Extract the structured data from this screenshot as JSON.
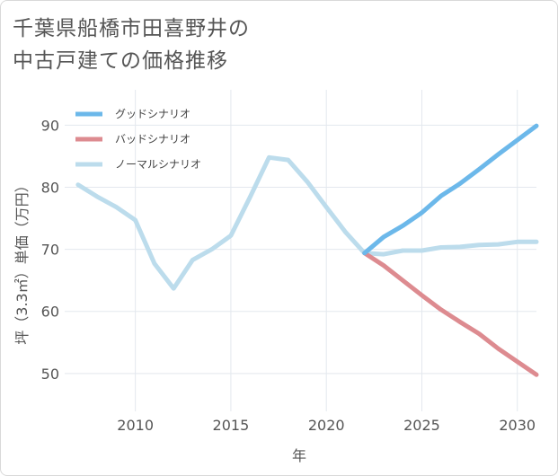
{
  "title_line1": "千葉県船橋市田喜野井の",
  "title_line2": "中古戸建ての価格推移",
  "chart_data": {
    "type": "line",
    "xlabel": "年",
    "ylabel": "坪（3.3㎡）単価（万円）",
    "xlim": [
      2006.3,
      2031
    ],
    "ylim": [
      43.9,
      95.7
    ],
    "xticks": [
      2010,
      2015,
      2020,
      2025,
      2030
    ],
    "yticks": [
      50,
      60,
      70,
      80,
      90
    ],
    "grid": true,
    "legend_position": "top-left",
    "series": [
      {
        "name": "グッドシナリオ",
        "color": "#6cb8ea",
        "x": [
          2022,
          2023,
          2024,
          2025,
          2026,
          2027,
          2028,
          2029,
          2030,
          2031
        ],
        "values": [
          69.4,
          72.0,
          73.8,
          75.9,
          78.6,
          80.6,
          82.9,
          85.3,
          87.6,
          89.9
        ]
      },
      {
        "name": "バッドシナリオ",
        "color": "#dd8b90",
        "x": [
          2022,
          2023,
          2024,
          2025,
          2026,
          2027,
          2028,
          2029,
          2030,
          2031
        ],
        "values": [
          69.4,
          67.4,
          65.0,
          62.6,
          60.3,
          58.3,
          56.4,
          54.0,
          51.9,
          49.8
        ]
      },
      {
        "name": "ノーマルシナリオ",
        "color": "#bcdcec",
        "x": [
          2007,
          2008,
          2009,
          2010,
          2011,
          2012,
          2013,
          2014,
          2015,
          2016,
          2017,
          2018,
          2019,
          2020,
          2021,
          2022,
          2023,
          2024,
          2025,
          2026,
          2027,
          2028,
          2029,
          2030,
          2031
        ],
        "values": [
          80.4,
          78.5,
          76.8,
          74.7,
          67.7,
          63.7,
          68.3,
          70.0,
          72.2,
          78.4,
          84.8,
          84.4,
          80.9,
          76.8,
          72.8,
          69.4,
          69.2,
          69.8,
          69.8,
          70.3,
          70.4,
          70.7,
          70.8,
          71.2,
          71.2
        ]
      }
    ]
  }
}
